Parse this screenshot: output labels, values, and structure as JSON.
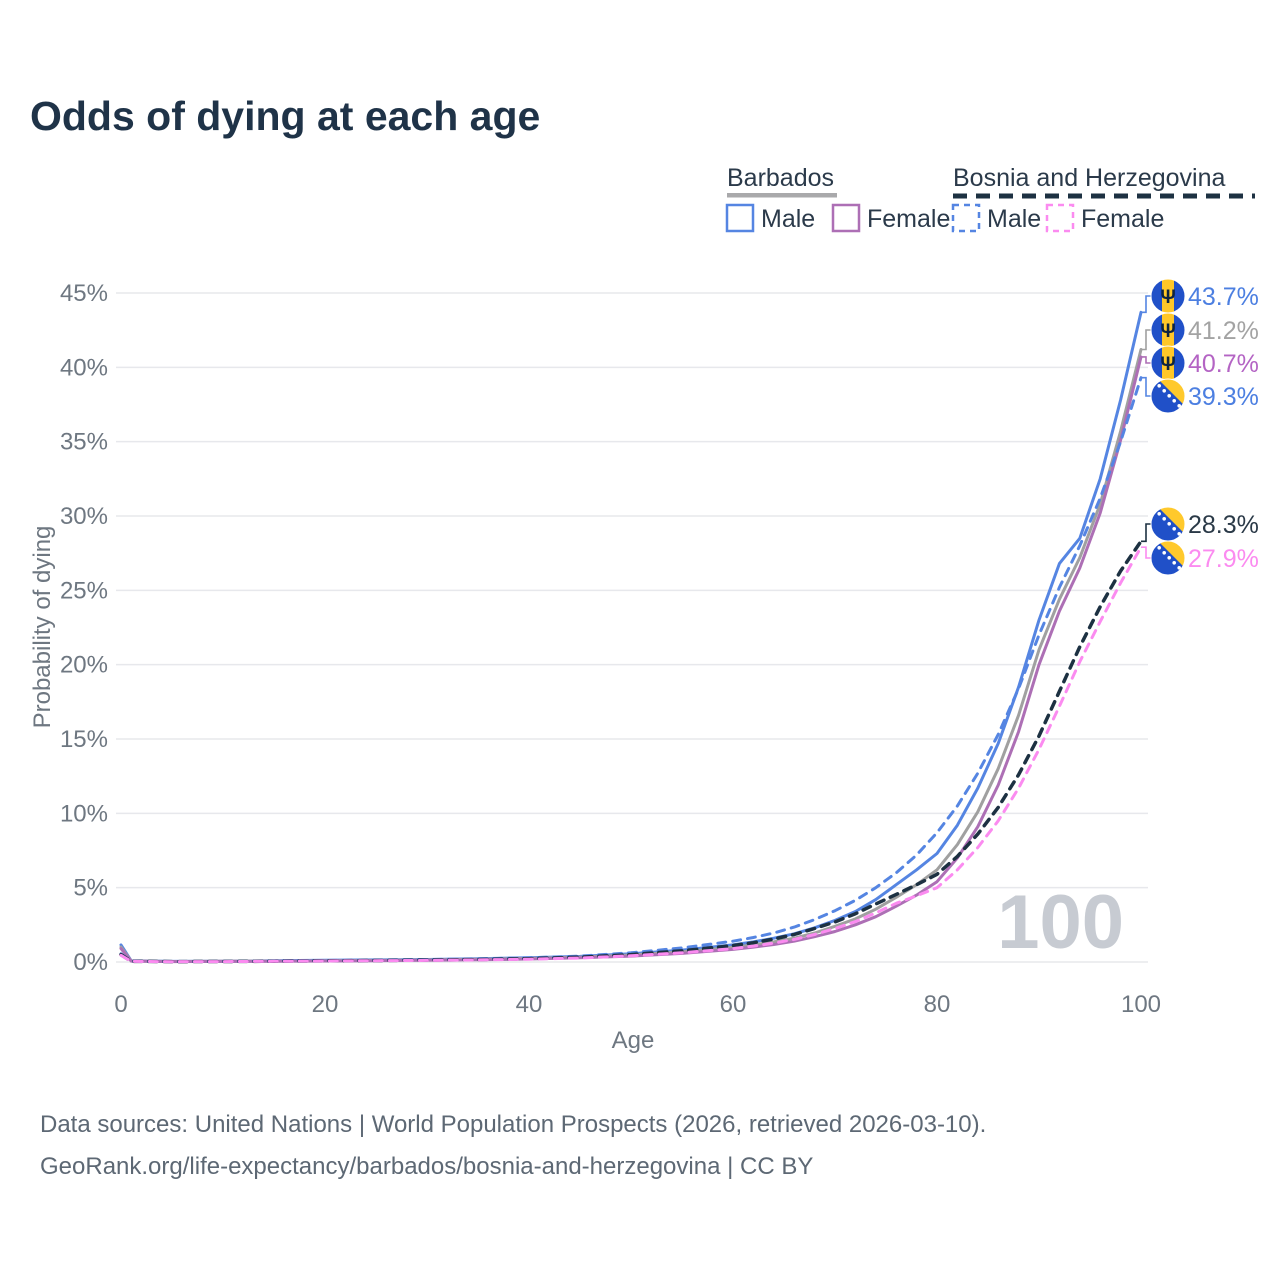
{
  "page": {
    "title": "Odds of dying at each age",
    "watermark_age": "100"
  },
  "legend": {
    "barbados": {
      "label": "Barbados",
      "male": "Male",
      "female": "Female"
    },
    "bosnia": {
      "label": "Bosnia and Herzegovina",
      "male": "Male",
      "female": "Female"
    }
  },
  "footer": {
    "line1": "Data sources: United Nations | World Population Prospects (2026, retrieved 2026-03-10).",
    "line2": "GeoRank.org/life-expectancy/barbados/bosnia-and-herzegovina | CC BY"
  },
  "colors": {
    "title": "#1f3348",
    "legend_text": "#2b3a4a",
    "axis_text": "#6e7781",
    "grid": "#e7e8ec",
    "footer_text": "#5d6874",
    "watermark": "#c7cbd2",
    "blue": "#5585e2",
    "gray": "#a0a0a0",
    "purple": "#ad6fb5",
    "navy": "#1d3142",
    "pink": "#fb8bf0",
    "flag_blue": "#2050c8",
    "flag_yellow": "#ffc728"
  },
  "chart_data": {
    "type": "line",
    "title": "Odds of dying at each age",
    "xlabel": "Age",
    "ylabel": "Probability of dying",
    "xlim": [
      0,
      100
    ],
    "ylim": [
      0,
      45
    ],
    "x_ticks": [
      0,
      20,
      40,
      60,
      80,
      100
    ],
    "y_ticks": [
      0,
      5,
      10,
      15,
      20,
      25,
      30,
      35,
      40,
      45
    ],
    "y_tick_suffix": "%",
    "grid": "horizontal",
    "legend_position": "top-right",
    "ages": [
      0,
      1,
      5,
      10,
      15,
      20,
      25,
      30,
      35,
      40,
      45,
      50,
      55,
      60,
      62,
      64,
      66,
      68,
      70,
      72,
      74,
      76,
      78,
      80,
      82,
      84,
      86,
      88,
      90,
      92,
      94,
      96,
      98,
      100
    ],
    "series": [
      {
        "name": "Barbados Male",
        "country": "Barbados",
        "sex": "male",
        "style": "solid",
        "color": "#5585e2",
        "flag": "barbados",
        "end_label": "43.7%",
        "end_label_color": "#4c7fe1",
        "values": [
          1.15,
          0.08,
          0.04,
          0.05,
          0.08,
          0.12,
          0.14,
          0.17,
          0.22,
          0.28,
          0.38,
          0.55,
          0.8,
          1.15,
          1.35,
          1.6,
          1.9,
          2.3,
          2.8,
          3.4,
          4.2,
          5.2,
          6.2,
          7.3,
          9.2,
          11.7,
          14.7,
          18.5,
          23.0,
          26.8,
          28.5,
          32.5,
          37.8,
          43.7
        ]
      },
      {
        "name": "Barbados",
        "country": "Barbados",
        "sex": "both",
        "style": "solid",
        "color": "#a0a0a0",
        "flag": "barbados",
        "end_label": "41.2%",
        "end_label_color": "#a3a3a3",
        "values": [
          1.0,
          0.07,
          0.035,
          0.045,
          0.06,
          0.09,
          0.11,
          0.14,
          0.18,
          0.24,
          0.33,
          0.47,
          0.68,
          0.98,
          1.15,
          1.35,
          1.6,
          1.95,
          2.4,
          2.9,
          3.55,
          4.35,
          5.2,
          6.2,
          7.9,
          10.1,
          13.0,
          16.6,
          21.0,
          24.4,
          27.2,
          30.8,
          35.7,
          41.2
        ]
      },
      {
        "name": "Barbados Female",
        "country": "Barbados",
        "sex": "female",
        "style": "solid",
        "color": "#ad6fb5",
        "flag": "barbados",
        "end_label": "40.7%",
        "end_label_color": "#b464c4",
        "values": [
          0.9,
          0.06,
          0.03,
          0.04,
          0.05,
          0.07,
          0.09,
          0.12,
          0.15,
          0.2,
          0.28,
          0.4,
          0.58,
          0.85,
          1.0,
          1.18,
          1.4,
          1.7,
          2.05,
          2.5,
          3.05,
          3.75,
          4.5,
          5.4,
          7.0,
          9.1,
          11.9,
          15.5,
          20.0,
          23.6,
          26.5,
          30.2,
          35.1,
          40.7
        ]
      },
      {
        "name": "Bosnia and Herzegovina Male",
        "country": "Bosnia and Herzegovina",
        "sex": "male",
        "style": "dashed",
        "color": "#5585e2",
        "flag": "bosnia",
        "end_label": "39.3%",
        "end_label_color": "#4c7fe1",
        "values": [
          0.55,
          0.05,
          0.03,
          0.04,
          0.07,
          0.1,
          0.13,
          0.16,
          0.21,
          0.28,
          0.4,
          0.62,
          0.95,
          1.4,
          1.65,
          1.95,
          2.35,
          2.85,
          3.45,
          4.15,
          5.0,
          6.0,
          7.2,
          8.7,
          10.5,
          12.7,
          15.3,
          18.4,
          22.0,
          25.2,
          28.0,
          31.2,
          35.0,
          39.3
        ]
      },
      {
        "name": "Bosnia and Herzegovina",
        "country": "Bosnia and Herzegovina",
        "sex": "both",
        "style": "dashed",
        "color": "#1d3142",
        "flag": "bosnia",
        "end_label": "28.3%",
        "end_label_color": "#2a3947",
        "values": [
          0.5,
          0.045,
          0.025,
          0.035,
          0.055,
          0.08,
          0.1,
          0.13,
          0.17,
          0.22,
          0.32,
          0.5,
          0.75,
          1.1,
          1.3,
          1.55,
          1.85,
          2.25,
          2.7,
          3.25,
          3.9,
          4.55,
          5.2,
          5.9,
          7.1,
          8.6,
          10.4,
          12.6,
          15.2,
          18.2,
          21.2,
          23.9,
          26.3,
          28.3
        ]
      },
      {
        "name": "Bosnia and Herzegovina Female",
        "country": "Bosnia and Herzegovina",
        "sex": "female",
        "style": "dashed",
        "color": "#fb8bf0",
        "flag": "bosnia",
        "end_label": "27.9%",
        "end_label_color": "#fb8bf0",
        "values": [
          0.45,
          0.04,
          0.02,
          0.03,
          0.045,
          0.065,
          0.085,
          0.11,
          0.14,
          0.19,
          0.27,
          0.42,
          0.62,
          0.9,
          1.07,
          1.27,
          1.52,
          1.85,
          2.25,
          2.72,
          3.3,
          3.95,
          4.45,
          5.0,
          6.2,
          7.7,
          9.5,
          11.7,
          14.3,
          17.2,
          20.2,
          22.9,
          25.5,
          27.9
        ]
      }
    ]
  }
}
